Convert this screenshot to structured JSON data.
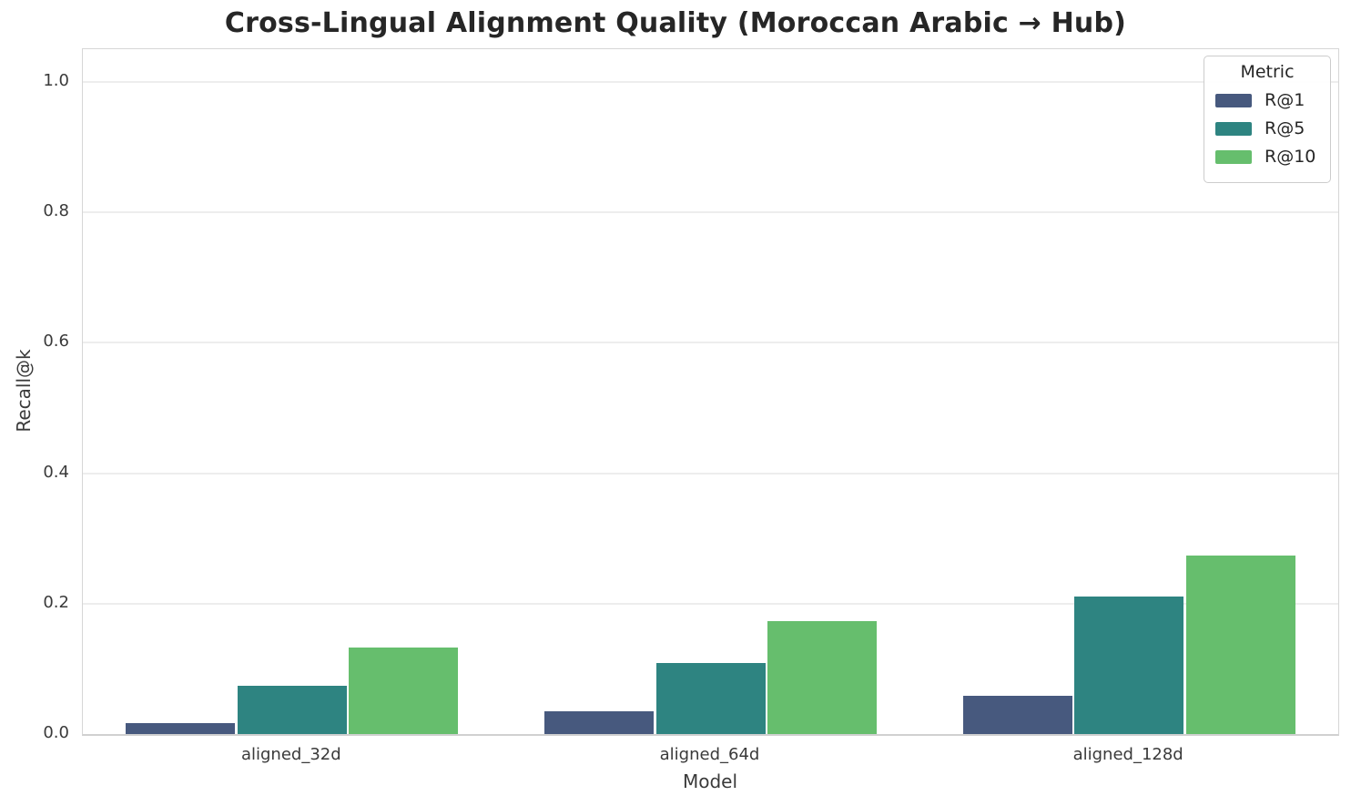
{
  "title": "Cross-Lingual Alignment Quality (Moroccan Arabic → Hub)",
  "axes": {
    "ylabel": "Recall@k",
    "xlabel": "Model",
    "ytick_labels": [
      "0.0",
      "0.2",
      "0.4",
      "0.6",
      "0.8",
      "1.0"
    ]
  },
  "legend": {
    "title": "Metric",
    "entries": [
      {
        "label": "R@1",
        "color": "#47597E"
      },
      {
        "label": "R@5",
        "color": "#2E8481"
      },
      {
        "label": "R@10",
        "color": "#66BE6D"
      }
    ]
  },
  "colors": {
    "grid": "#ededed",
    "spine": "#d6d6d6",
    "text_dark": "#262626",
    "text_tick": "#3a3a3a"
  },
  "chart_data": {
    "type": "bar",
    "title": "Cross-Lingual Alignment Quality (Moroccan Arabic → Hub)",
    "xlabel": "Model",
    "ylabel": "Recall@k",
    "categories": [
      "aligned_32d",
      "aligned_64d",
      "aligned_128d"
    ],
    "series": [
      {
        "name": "R@1",
        "color": "#47597E",
        "values": [
          0.017,
          0.035,
          0.058
        ]
      },
      {
        "name": "R@5",
        "color": "#2E8481",
        "values": [
          0.074,
          0.109,
          0.211
        ]
      },
      {
        "name": "R@10",
        "color": "#66BE6D",
        "values": [
          0.133,
          0.173,
          0.274
        ]
      }
    ],
    "ylim": [
      0,
      1.05
    ],
    "yticks": [
      0.0,
      0.2,
      0.4,
      0.6,
      0.8,
      1.0
    ],
    "grid": true,
    "legend_title": "Metric",
    "legend_position": "upper right"
  }
}
